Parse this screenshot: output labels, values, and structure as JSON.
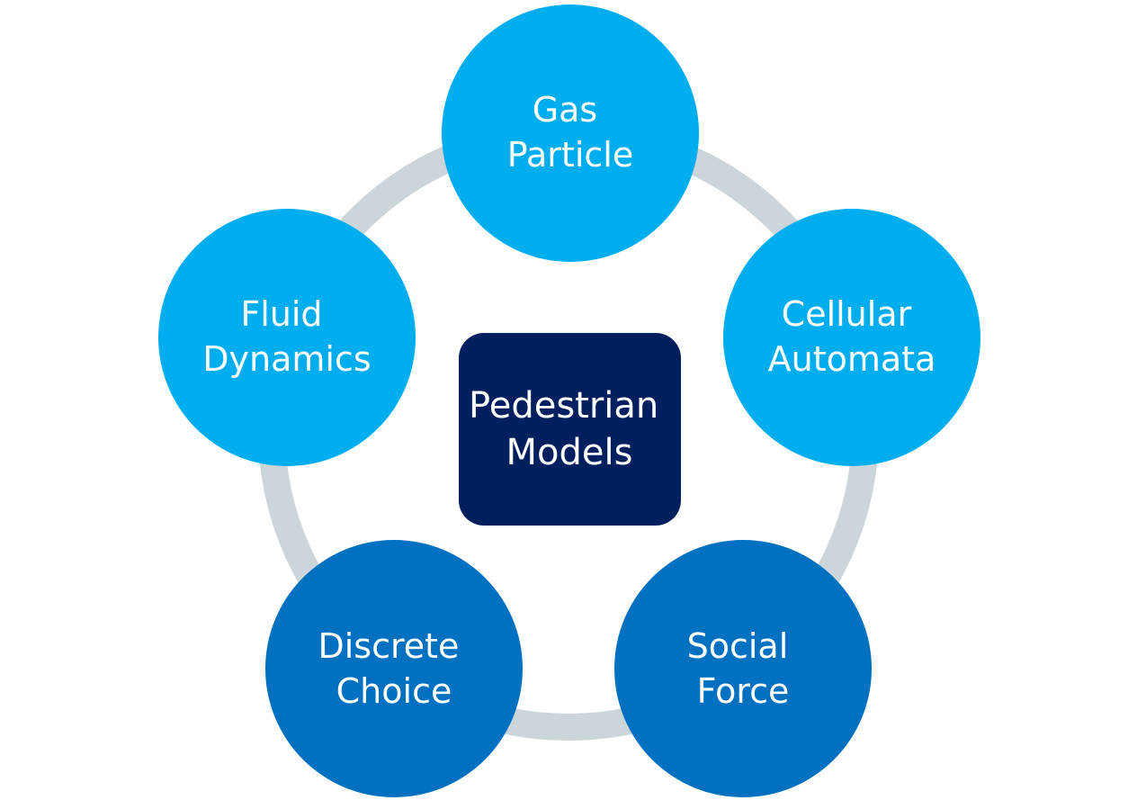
{
  "diagram": {
    "center": {
      "lines": [
        "Pedestrian",
        "Models"
      ],
      "color": "#001f5e"
    },
    "ring_color": "#ccd5d9",
    "nodes": [
      {
        "id": "gas-particle",
        "lines": [
          "Gas",
          "Particle"
        ],
        "color": "#00aeef"
      },
      {
        "id": "cellular-automata",
        "lines": [
          "Cellular",
          "Automata"
        ],
        "color": "#00aeef"
      },
      {
        "id": "social-force",
        "lines": [
          "Social",
          "Force"
        ],
        "color": "#0070c0"
      },
      {
        "id": "discrete-choice",
        "lines": [
          "Discrete",
          "Choice"
        ],
        "color": "#0070c0"
      },
      {
        "id": "fluid-dynamics",
        "lines": [
          "Fluid",
          "Dynamics"
        ],
        "color": "#00aeef"
      }
    ]
  }
}
